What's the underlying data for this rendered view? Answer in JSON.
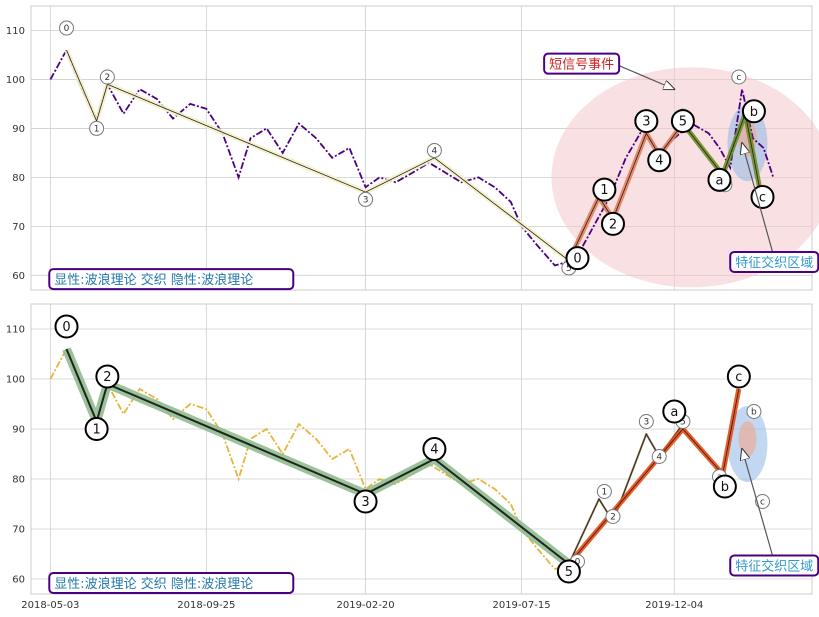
{
  "chart_data": [
    {
      "type": "line",
      "panel": "top",
      "ylim": [
        57,
        115
      ],
      "y_ticks": [
        60,
        70,
        80,
        90,
        100,
        110
      ],
      "x_dates": [
        "2018-05-03",
        "2018-09-25",
        "2019-02-20",
        "2019-07-15",
        "2019-12-04"
      ],
      "xlim": [
        "2018-04-15",
        "2020-04-10"
      ],
      "grid": true,
      "price_line_color": "#4b0082",
      "price_series": {
        "x": [
          "2018-05-03",
          "2018-05-18",
          "2018-06-01",
          "2018-06-15",
          "2018-06-25",
          "2018-07-10",
          "2018-07-25",
          "2018-08-10",
          "2018-08-25",
          "2018-09-10",
          "2018-09-25",
          "2018-10-10",
          "2018-10-25",
          "2018-11-05",
          "2018-11-20",
          "2018-12-05",
          "2018-12-20",
          "2019-01-05",
          "2019-01-20",
          "2019-02-05",
          "2019-02-20",
          "2019-03-05",
          "2019-03-20",
          "2019-04-05",
          "2019-04-20",
          "2019-05-05",
          "2019-05-20",
          "2019-06-05",
          "2019-06-20",
          "2019-07-05",
          "2019-07-15",
          "2019-07-30",
          "2019-08-15",
          "2019-08-30",
          "2019-09-05",
          "2019-09-20",
          "2019-10-05",
          "2019-10-20",
          "2019-11-05",
          "2019-11-20",
          "2019-12-04",
          "2019-12-20",
          "2020-01-05",
          "2020-01-15",
          "2020-01-25",
          "2020-02-05",
          "2020-02-15",
          "2020-02-25",
          "2020-03-05"
        ],
        "y": [
          100,
          106,
          98,
          92,
          99,
          93,
          98,
          96,
          92,
          95,
          94,
          89,
          80,
          88,
          90,
          85,
          91,
          88,
          84,
          86,
          78,
          80,
          79,
          81,
          83,
          81,
          79,
          80,
          78,
          75,
          70,
          66,
          62,
          63,
          64,
          70,
          76,
          84,
          90,
          85,
          88,
          91,
          89,
          86,
          82,
          98,
          88,
          86,
          80
        ]
      },
      "waves": [
        {
          "name": "primary",
          "x": [
            "2018-05-18",
            "2018-06-15",
            "2018-06-25",
            "2019-02-20",
            "2019-04-25",
            "2019-08-28"
          ],
          "y": [
            106,
            91.5,
            99,
            77,
            84,
            63
          ],
          "labels": [
            "0",
            "1",
            "2",
            "3",
            "4",
            "5"
          ],
          "color": "#f5f0c8"
        },
        {
          "name": "impulse",
          "x": [
            "2019-08-28",
            "2019-09-25",
            "2019-10-08",
            "2019-11-08",
            "2019-11-20",
            "2019-12-12"
          ],
          "y": [
            63,
            76,
            71.5,
            89,
            84.5,
            91
          ],
          "labels": [
            "0",
            "1",
            "2",
            "3",
            "4",
            "5"
          ],
          "color": "#e3805c"
        },
        {
          "name": "correction",
          "x": [
            "2019-12-12",
            "2020-01-18",
            "2020-02-08",
            "2020-02-22"
          ],
          "y": [
            91,
            80.5,
            93,
            77
          ],
          "labels": [
            "a",
            "b",
            "c"
          ],
          "color": "#6b8e23"
        }
      ],
      "small_labels": [
        {
          "text": "0",
          "x": "2018-05-18",
          "y": 110.5
        },
        {
          "text": "1",
          "x": "2018-06-15",
          "y": 90
        },
        {
          "text": "2",
          "x": "2018-06-25",
          "y": 100.5
        },
        {
          "text": "3",
          "x": "2019-02-20",
          "y": 75.5
        },
        {
          "text": "4",
          "x": "2019-04-25",
          "y": 85.5
        },
        {
          "text": "5",
          "x": "2019-08-28",
          "y": 61.5
        },
        {
          "text": "a",
          "x": "2019-12-12",
          "y": 92.5
        },
        {
          "text": "b",
          "x": "2020-01-20",
          "y": 78.5
        },
        {
          "text": "c",
          "x": "2020-02-02",
          "y": 100.5
        }
      ],
      "big_labels": [
        {
          "text": "0",
          "x": "2019-09-05",
          "y": 63.5
        },
        {
          "text": "1",
          "x": "2019-09-30",
          "y": 77.5
        },
        {
          "text": "2",
          "x": "2019-10-08",
          "y": 70.5
        },
        {
          "text": "3",
          "x": "2019-11-08",
          "y": 91.5
        },
        {
          "text": "4",
          "x": "2019-11-20",
          "y": 83.5
        },
        {
          "text": "5",
          "x": "2019-12-12",
          "y": 91.5
        },
        {
          "text": "a",
          "x": "2020-01-15",
          "y": 79.5
        },
        {
          "text": "b",
          "x": "2020-02-16",
          "y": 93.5
        },
        {
          "text": "c",
          "x": "2020-02-24",
          "y": 76
        }
      ],
      "annotations": [
        {
          "text": "短信号事件",
          "color": "#cc2222",
          "x": "2019-08-05",
          "y": 102,
          "arrow_to": {
            "x": "2019-12-04",
            "y": 98
          }
        },
        {
          "text": "特征交织区域",
          "color": "#3399cc",
          "x": "2020-01-25",
          "y": 61.5,
          "arrow_to": {
            "x": "2020-02-05",
            "y": 87
          }
        },
        {
          "text": "显性:波浪理论 交织 隐性:波浪理论",
          "color": "#2277aa",
          "x": "2018-05-02",
          "y": 58
        }
      ]
    },
    {
      "type": "line",
      "panel": "bottom",
      "ylim": [
        57,
        115
      ],
      "y_ticks": [
        60,
        70,
        80,
        90,
        100,
        110
      ],
      "x_dates": [
        "2018-05-03",
        "2018-09-25",
        "2019-02-20",
        "2019-07-15",
        "2019-12-04"
      ],
      "xlim": [
        "2018-04-15",
        "2020-04-10"
      ],
      "grid": true,
      "price_line_color": "#e8b43c",
      "price_series": {
        "x": [
          "2018-05-03",
          "2018-05-18",
          "2018-06-01",
          "2018-06-15",
          "2018-06-25",
          "2018-07-10",
          "2018-07-25",
          "2018-08-10",
          "2018-08-25",
          "2018-09-10",
          "2018-09-25",
          "2018-10-10",
          "2018-10-25",
          "2018-11-05",
          "2018-11-20",
          "2018-12-05",
          "2018-12-20",
          "2019-01-05",
          "2019-01-20",
          "2019-02-05",
          "2019-02-20",
          "2019-03-05",
          "2019-03-20",
          "2019-04-05",
          "2019-04-20",
          "2019-05-05",
          "2019-05-20",
          "2019-06-05",
          "2019-06-20",
          "2019-07-05",
          "2019-07-15",
          "2019-07-30",
          "2019-08-15",
          "2019-08-30"
        ],
        "y": [
          100,
          106,
          98,
          92,
          99,
          93,
          98,
          96,
          92,
          95,
          94,
          89,
          80,
          88,
          90,
          85,
          91,
          88,
          84,
          86,
          78,
          80,
          79,
          81,
          83,
          81,
          79,
          80,
          78,
          75,
          70,
          66,
          62,
          63
        ]
      },
      "waves": [
        {
          "name": "primary",
          "x": [
            "2018-05-18",
            "2018-06-15",
            "2018-06-25",
            "2019-02-20",
            "2019-04-25",
            "2019-08-28"
          ],
          "y": [
            106,
            91.5,
            99,
            77,
            84,
            63
          ],
          "labels": [
            "0",
            "1",
            "2",
            "3",
            "4",
            "5"
          ],
          "color": "#8fbc8f"
        },
        {
          "name": "impulse",
          "x": [
            "2019-08-28",
            "2019-09-25",
            "2019-10-08",
            "2019-11-08",
            "2019-11-20",
            "2019-12-12"
          ],
          "y": [
            63,
            76,
            71.5,
            89,
            84.5,
            91
          ],
          "labels": [
            "0",
            "1",
            "2",
            "3",
            "4",
            "5"
          ],
          "color": "#8b6b3a"
        },
        {
          "name": "correction",
          "x": [
            "2019-08-28",
            "2019-12-12",
            "2020-01-18",
            "2020-02-02"
          ],
          "y": [
            63,
            90,
            81,
            98
          ],
          "labels": [
            "5",
            "a",
            "b",
            "c"
          ],
          "color": "#e8490f"
        }
      ],
      "small_labels": [
        {
          "text": "0",
          "x": "2019-09-05",
          "y": 63.5
        },
        {
          "text": "1",
          "x": "2019-09-30",
          "y": 77.5
        },
        {
          "text": "2",
          "x": "2019-10-08",
          "y": 72.5
        },
        {
          "text": "3",
          "x": "2019-11-08",
          "y": 91.5
        },
        {
          "text": "4",
          "x": "2019-11-20",
          "y": 84.5
        },
        {
          "text": "5",
          "x": "2019-12-12",
          "y": 91.5
        },
        {
          "text": "a",
          "x": "2020-01-15",
          "y": 80.5
        },
        {
          "text": "b",
          "x": "2020-02-16",
          "y": 93.5
        },
        {
          "text": "c",
          "x": "2020-02-24",
          "y": 75.5
        }
      ],
      "big_labels": [
        {
          "text": "0",
          "x": "2018-05-18",
          "y": 110.5
        },
        {
          "text": "1",
          "x": "2018-06-15",
          "y": 90
        },
        {
          "text": "2",
          "x": "2018-06-25",
          "y": 100.5
        },
        {
          "text": "3",
          "x": "2019-02-20",
          "y": 75.5
        },
        {
          "text": "4",
          "x": "2019-04-25",
          "y": 86
        },
        {
          "text": "5",
          "x": "2019-08-28",
          "y": 61.5
        },
        {
          "text": "a",
          "x": "2019-12-04",
          "y": 93.5
        },
        {
          "text": "b",
          "x": "2020-01-20",
          "y": 78.5
        },
        {
          "text": "c",
          "x": "2020-02-02",
          "y": 100.5
        }
      ],
      "annotations": [
        {
          "text": "特征交织区域",
          "color": "#3399cc",
          "x": "2020-01-25",
          "y": 61.5,
          "arrow_to": {
            "x": "2020-02-05",
            "y": 86
          }
        },
        {
          "text": "显性:波浪理论 交织 隐性:波浪理论",
          "color": "#2277aa",
          "x": "2018-05-02",
          "y": 58
        }
      ]
    }
  ]
}
